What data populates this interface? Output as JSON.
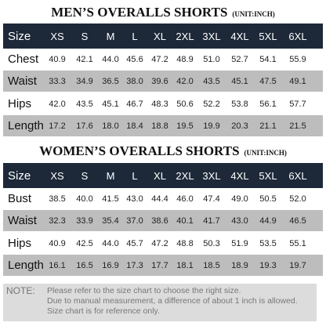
{
  "men": {
    "title": "MEN’S OVERALLS SHORTS",
    "unit": "(UNIT:INCH)",
    "header": [
      "Size",
      "XS",
      "S",
      "M",
      "L",
      "XL",
      "2XL",
      "3XL",
      "4XL",
      "5XL",
      "6XL"
    ],
    "rows": [
      [
        "Chest",
        "40.9",
        "42.1",
        "44.0",
        "45.6",
        "47.2",
        "48.9",
        "51.0",
        "52.7",
        "54.1",
        "55.9"
      ],
      [
        "Waist",
        "33.3",
        "34.9",
        "36.5",
        "38.0",
        "39.6",
        "42.0",
        "43.5",
        "45.1",
        "47.5",
        "49.1"
      ],
      [
        "Hips",
        "42.0",
        "43.5",
        "45.1",
        "46.7",
        "48.3",
        "50.6",
        "52.2",
        "53.8",
        "56.1",
        "57.7"
      ],
      [
        "Length",
        "17.2",
        "17.6",
        "18.0",
        "18.4",
        "18.8",
        "19.5",
        "19.9",
        "20.3",
        "21.1",
        "21.5"
      ]
    ]
  },
  "women": {
    "title": "WOMEN’S OVERALLS SHORTS",
    "unit": "(UNIT:INCH)",
    "header": [
      "Size",
      "XS",
      "S",
      "M",
      "L",
      "XL",
      "2XL",
      "3XL",
      "4XL",
      "5XL",
      "6XL"
    ],
    "rows": [
      [
        "Bust",
        "38.5",
        "40.0",
        "41.5",
        "43.0",
        "44.4",
        "46.0",
        "47.4",
        "49.0",
        "50.5",
        "52.0"
      ],
      [
        "Waist",
        "32.3",
        "33.9",
        "35.4",
        "37.0",
        "38.6",
        "40.1",
        "41.7",
        "43.0",
        "44.9",
        "46.5"
      ],
      [
        "Hips",
        "40.9",
        "42.5",
        "44.0",
        "45.7",
        "47.2",
        "48.8",
        "50.3",
        "51.9",
        "53.5",
        "55.1"
      ],
      [
        "Length",
        "16.1",
        "16.5",
        "16.9",
        "17.3",
        "17.7",
        "18.1",
        "18.5",
        "18.9",
        "19.3",
        "19.7"
      ]
    ]
  },
  "note": {
    "label": "NOTE:",
    "lines": [
      "Please refer to the size chart to choose the right size.",
      "Due to manual measurement, a difference of about 1 inch is allowed.",
      "Size chart is for reference only."
    ]
  }
}
